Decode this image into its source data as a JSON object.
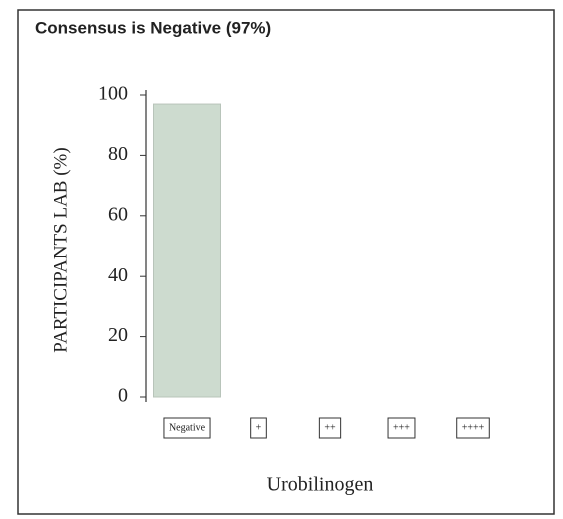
{
  "chart_data": {
    "type": "bar",
    "title": "Consensus is Negative (97%)",
    "x_label": "Urobilinogen",
    "y_label": "PARTICIPANTS LAB  (%)",
    "categories": [
      "Negative",
      "+",
      "++",
      "+++",
      "++++"
    ],
    "values": [
      97,
      0,
      0,
      0,
      0
    ],
    "color": "#cddbcf",
    "ylim": [
      0,
      100
    ],
    "yticks": [
      0,
      20,
      40,
      60,
      80,
      100
    ],
    "grid": false
  }
}
